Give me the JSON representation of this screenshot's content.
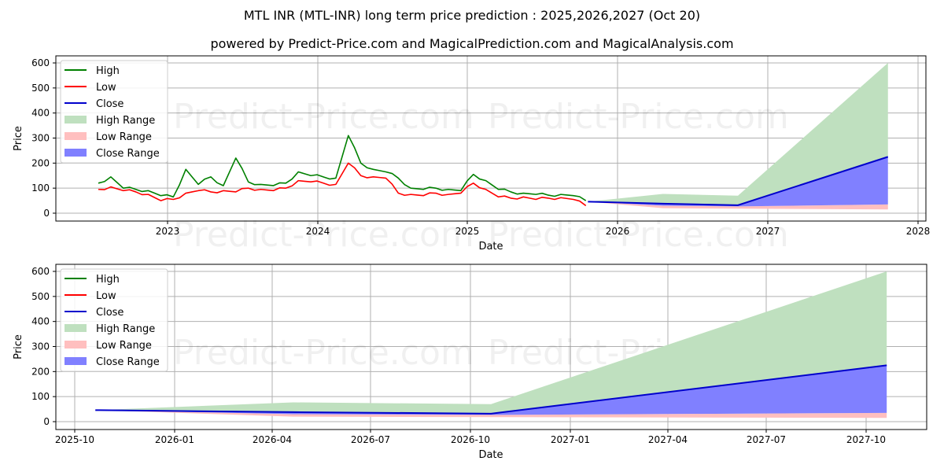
{
  "header": {
    "title": "MTL INR (MTL-INR) long term price prediction : 2025,2026,2027 (Oct 20)",
    "subtitle": "powered by Predict-Price.com and MagicalPrediction.com and MagicalAnalysis.com"
  },
  "watermark": "Predict-Price.com",
  "legend": {
    "items": [
      {
        "label": "High",
        "type": "line",
        "color": "#008000"
      },
      {
        "label": "Low",
        "type": "line",
        "color": "#ff0000"
      },
      {
        "label": "Close",
        "type": "line",
        "color": "#0000cc"
      },
      {
        "label": "High Range",
        "type": "patch",
        "color": "#bfe0bf"
      },
      {
        "label": "Low Range",
        "type": "patch",
        "color": "#ffbfbf"
      },
      {
        "label": "Close Range",
        "type": "patch",
        "color": "#8080ff"
      }
    ]
  },
  "chart_data": [
    {
      "type": "line",
      "title": "MTL INR (MTL-INR) long term price prediction : 2025,2026,2027 (Oct 20)",
      "xlabel": "Date",
      "ylabel": "Price",
      "ylim": [
        -20,
        620
      ],
      "yticks": [
        0,
        100,
        200,
        300,
        400,
        500,
        600
      ],
      "xticks": [
        "2023",
        "2024",
        "2025",
        "2026",
        "2027",
        "2028"
      ],
      "grid": true,
      "legend_position": "upper left",
      "historical": {
        "x": [
          "2022-07",
          "2022-08",
          "2022-09",
          "2022-10",
          "2022-11",
          "2022-12",
          "2023-01",
          "2023-02",
          "2023-03",
          "2023-04",
          "2023-05",
          "2023-06",
          "2023-07",
          "2023-08",
          "2023-09",
          "2023-10",
          "2023-11",
          "2023-12",
          "2024-01",
          "2024-02",
          "2024-03",
          "2024-04",
          "2024-05",
          "2024-06",
          "2024-07",
          "2024-08",
          "2024-09",
          "2024-10",
          "2024-11",
          "2024-12",
          "2025-01",
          "2025-02",
          "2025-03",
          "2025-04",
          "2025-05",
          "2025-06",
          "2025-07",
          "2025-08",
          "2025-09",
          "2025-10"
        ],
        "series": [
          {
            "name": "High",
            "values": [
              120,
              145,
              100,
              95,
              90,
              70,
              65,
              175,
              115,
              145,
              110,
              220,
              125,
              115,
              110,
              120,
              165,
              150,
              145,
              140,
              310,
              200,
              175,
              165,
              140,
              100,
              95,
              100,
              95,
              90,
              155,
              130,
              95,
              85,
              80,
              75,
              72,
              75,
              70,
              50
            ]
          },
          {
            "name": "Low",
            "values": [
              95,
              105,
              90,
              85,
              75,
              50,
              55,
              80,
              90,
              85,
              90,
              85,
              100,
              95,
              90,
              100,
              130,
              125,
              120,
              115,
              200,
              150,
              145,
              140,
              80,
              75,
              70,
              80,
              75,
              80,
              120,
              95,
              65,
              60,
              65,
              55,
              60,
              62,
              55,
              30
            ]
          },
          {
            "name": "Close",
            "values": [
              105,
              110,
              95,
              90,
              80,
              60,
              60,
              90,
              100,
              100,
              95,
              95,
              110,
              100,
              100,
              105,
              140,
              135,
              130,
              125,
              210,
              170,
              160,
              155,
              95,
              85,
              80,
              90,
              85,
              85,
              130,
              105,
              75,
              70,
              72,
              65,
              65,
              68,
              62,
              46
            ]
          }
        ]
      },
      "forecast": {
        "x": [
          "2025-10-20",
          "2026-04-20",
          "2026-10-20",
          "2027-10-20"
        ],
        "series": [
          {
            "name": "High Range upper",
            "values": [
              46,
              77,
              70,
              600
            ]
          },
          {
            "name": "Close",
            "values": [
              46,
              38,
              32,
              225
            ]
          },
          {
            "name": "Close Range lower",
            "values": [
              46,
              30,
              27,
              35
            ]
          },
          {
            "name": "Low Range lower",
            "values": [
              46,
              20,
              18,
              15
            ]
          }
        ]
      }
    },
    {
      "type": "line",
      "xlabel": "Date",
      "ylabel": "Price",
      "ylim": [
        -20,
        620
      ],
      "yticks": [
        0,
        100,
        200,
        300,
        400,
        500,
        600
      ],
      "xticks": [
        "2025-10",
        "2026-01",
        "2026-04",
        "2026-07",
        "2026-10",
        "2027-01",
        "2027-04",
        "2027-07",
        "2027-10"
      ],
      "grid": true,
      "legend_position": "upper left",
      "forecast": {
        "x": [
          "2025-10-20",
          "2026-04-20",
          "2026-10-20",
          "2027-10-20"
        ],
        "series": [
          {
            "name": "High Range upper",
            "values": [
              46,
              77,
              70,
              600
            ]
          },
          {
            "name": "Close",
            "values": [
              46,
              38,
              32,
              225
            ]
          },
          {
            "name": "Close Range lower",
            "values": [
              46,
              30,
              27,
              35
            ]
          },
          {
            "name": "Low Range lower",
            "values": [
              46,
              20,
              18,
              15
            ]
          }
        ]
      }
    }
  ],
  "axes": {
    "top": {
      "ylabel": "Price",
      "xlabel": "Date",
      "yticks": [
        "0",
        "100",
        "200",
        "300",
        "400",
        "500",
        "600"
      ],
      "xticks": [
        "2023",
        "2024",
        "2025",
        "2026",
        "2027",
        "2028"
      ]
    },
    "bottom": {
      "ylabel": "Price",
      "xlabel": "Date",
      "yticks": [
        "0",
        "100",
        "200",
        "300",
        "400",
        "500",
        "600"
      ],
      "xticks": [
        "2025-10",
        "2026-01",
        "2026-04",
        "2026-07",
        "2026-10",
        "2027-01",
        "2027-04",
        "2027-07",
        "2027-10"
      ]
    }
  }
}
